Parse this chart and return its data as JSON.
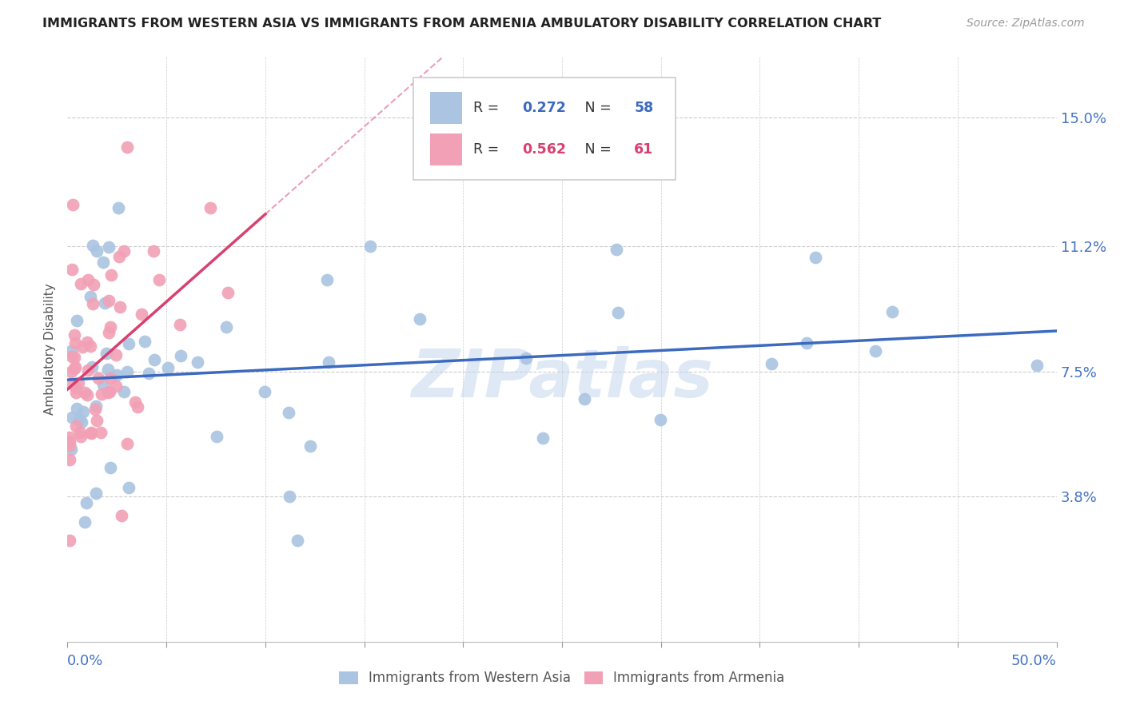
{
  "title": "IMMIGRANTS FROM WESTERN ASIA VS IMMIGRANTS FROM ARMENIA AMBULATORY DISABILITY CORRELATION CHART",
  "source": "Source: ZipAtlas.com",
  "ylabel": "Ambulatory Disability",
  "ytick_labels": [
    "3.8%",
    "7.5%",
    "11.2%",
    "15.0%"
  ],
  "ytick_values": [
    0.038,
    0.075,
    0.112,
    0.15
  ],
  "xlim": [
    0.0,
    0.5
  ],
  "ylim": [
    -0.005,
    0.168
  ],
  "legend_label1": "Immigrants from Western Asia",
  "legend_label2": "Immigrants from Armenia",
  "R1": 0.272,
  "N1": 58,
  "R2": 0.562,
  "N2": 61,
  "color1": "#aac4e2",
  "color2": "#f2a0b5",
  "line_color1": "#3c6abf",
  "line_color2": "#d94070",
  "watermark": "ZIPatlas",
  "background_color": "#ffffff",
  "seed1": 15,
  "seed2": 22
}
